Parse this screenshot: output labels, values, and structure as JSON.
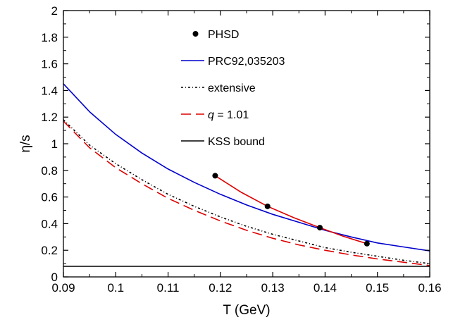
{
  "chart_data": {
    "type": "line",
    "xlabel": "T (GeV)",
    "ylabel": "η/s",
    "xlim": [
      0.09,
      0.16
    ],
    "ylim": [
      0,
      2
    ],
    "xticks": [
      "0.09",
      "0.1",
      "0.11",
      "0.12",
      "0.13",
      "0.14",
      "0.15",
      "0.16"
    ],
    "xtick_values": [
      0.09,
      0.1,
      0.11,
      0.12,
      0.13,
      0.14,
      0.15,
      0.16
    ],
    "yticks": [
      "0",
      "0.2",
      "0.4",
      "0.6",
      "0.8",
      "1",
      "1.2",
      "1.4",
      "1.6",
      "1.8",
      "2"
    ],
    "ytick_values": [
      0,
      0.2,
      0.4,
      0.6,
      0.8,
      1.0,
      1.2,
      1.4,
      1.6,
      1.8,
      2.0
    ],
    "legend_position": "top-center, inside plot",
    "series": [
      {
        "name": "PHSD",
        "kind": "markers",
        "color": "#000000",
        "points": [
          [
            0.119,
            0.76
          ],
          [
            0.129,
            0.53
          ],
          [
            0.139,
            0.37
          ],
          [
            0.148,
            0.25
          ]
        ]
      },
      {
        "name": "PRC92,035203",
        "kind": "line",
        "style": "solid",
        "color": "#0000cc",
        "points": [
          [
            0.09,
            1.45
          ],
          [
            0.095,
            1.24
          ],
          [
            0.1,
            1.07
          ],
          [
            0.105,
            0.93
          ],
          [
            0.11,
            0.81
          ],
          [
            0.115,
            0.71
          ],
          [
            0.12,
            0.62
          ],
          [
            0.125,
            0.54
          ],
          [
            0.13,
            0.47
          ],
          [
            0.135,
            0.41
          ],
          [
            0.14,
            0.35
          ],
          [
            0.145,
            0.3
          ],
          [
            0.15,
            0.255
          ],
          [
            0.155,
            0.225
          ],
          [
            0.16,
            0.195
          ]
        ]
      },
      {
        "name": "extensive",
        "kind": "line",
        "style": "dash-dot",
        "color": "#000000",
        "points": [
          [
            0.09,
            1.18
          ],
          [
            0.095,
            0.99
          ],
          [
            0.1,
            0.85
          ],
          [
            0.105,
            0.73
          ],
          [
            0.11,
            0.62
          ],
          [
            0.115,
            0.53
          ],
          [
            0.12,
            0.45
          ],
          [
            0.125,
            0.38
          ],
          [
            0.13,
            0.32
          ],
          [
            0.135,
            0.27
          ],
          [
            0.14,
            0.22
          ],
          [
            0.145,
            0.185
          ],
          [
            0.15,
            0.155
          ],
          [
            0.155,
            0.125
          ],
          [
            0.16,
            0.1
          ]
        ]
      },
      {
        "name": "q = 1.01",
        "kind": "line",
        "style": "long-dash",
        "color": "#dd0000",
        "points": [
          [
            0.09,
            1.17
          ],
          [
            0.095,
            0.97
          ],
          [
            0.1,
            0.82
          ],
          [
            0.105,
            0.7
          ],
          [
            0.11,
            0.59
          ],
          [
            0.115,
            0.5
          ],
          [
            0.12,
            0.42
          ],
          [
            0.125,
            0.35
          ],
          [
            0.13,
            0.29
          ],
          [
            0.135,
            0.24
          ],
          [
            0.14,
            0.2
          ],
          [
            0.145,
            0.165
          ],
          [
            0.15,
            0.135
          ],
          [
            0.155,
            0.11
          ],
          [
            0.16,
            0.085
          ]
        ]
      },
      {
        "name": "PHSD fit",
        "kind": "line",
        "style": "solid",
        "color": "#dd0000",
        "in_legend": false,
        "points": [
          [
            0.119,
            0.76
          ],
          [
            0.124,
            0.635
          ],
          [
            0.129,
            0.53
          ],
          [
            0.134,
            0.445
          ],
          [
            0.139,
            0.37
          ],
          [
            0.1435,
            0.305
          ],
          [
            0.148,
            0.25
          ]
        ]
      },
      {
        "name": "KSS bound",
        "kind": "line",
        "style": "solid",
        "color": "#000000",
        "points": [
          [
            0.09,
            0.0796
          ],
          [
            0.16,
            0.0796
          ]
        ]
      }
    ],
    "legend": [
      {
        "label": "PHSD",
        "marker": "dot",
        "color": "#000000"
      },
      {
        "label": "PRC92,035203",
        "marker": "solid",
        "color": "#0000cc"
      },
      {
        "label": "extensive",
        "marker": "dash-dot",
        "color": "#000000"
      },
      {
        "label_italic": "q",
        "label_rest": " = 1.01",
        "marker": "long-dash",
        "color": "#dd0000"
      },
      {
        "label": "KSS bound",
        "marker": "solid",
        "color": "#000000"
      }
    ]
  }
}
